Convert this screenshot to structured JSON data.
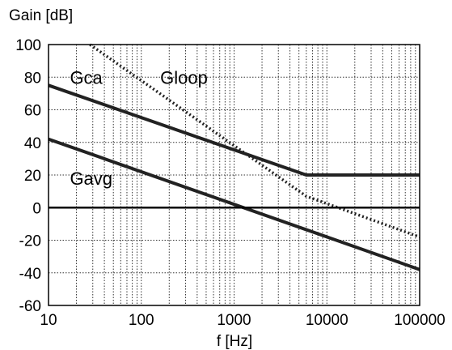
{
  "chart_data": {
    "type": "line",
    "ylabel": "Gain [dB]",
    "xlabel": "f [Hz]",
    "x_scale": "log",
    "xlim": [
      10,
      100000
    ],
    "ylim": [
      -60,
      100
    ],
    "grid": true,
    "x_tick_labels": [
      "10",
      "100",
      "1000",
      "10000",
      "100000"
    ],
    "y_tick_labels": [
      "100",
      "80",
      "60",
      "40",
      "20",
      "0",
      "-20",
      "-40",
      "-60"
    ],
    "series": [
      {
        "name": "Gca",
        "style": "solid",
        "color": "#222222",
        "x": [
          10,
          6000,
          100000
        ],
        "y": [
          75,
          20,
          20
        ]
      },
      {
        "name": "Gloop",
        "style": "dotted",
        "color": "#222222",
        "x": [
          28,
          6000,
          100000
        ],
        "y": [
          100,
          7,
          -18
        ]
      },
      {
        "name": "Gavg",
        "style": "solid",
        "color": "#222222",
        "x": [
          10,
          100000
        ],
        "y": [
          42,
          -38
        ]
      },
      {
        "name": "",
        "style": "solid",
        "color": "#000000",
        "x": [
          10,
          100000
        ],
        "y": [
          0,
          0
        ]
      }
    ],
    "annotations": [
      {
        "text": "Gca",
        "x": 17,
        "y": 80
      },
      {
        "text": "Gloop",
        "x": 160,
        "y": 80
      },
      {
        "text": "Gavg",
        "x": 17,
        "y": 18
      }
    ]
  }
}
